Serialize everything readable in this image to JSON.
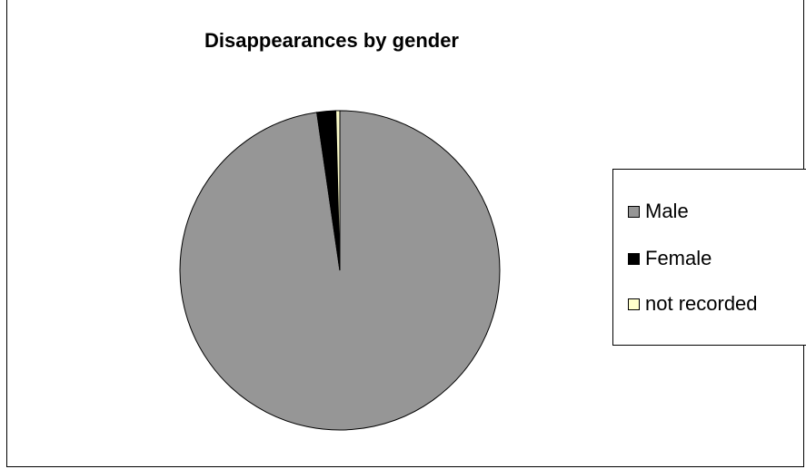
{
  "chart_data": {
    "type": "pie",
    "title": "Disappearances by gender",
    "categories": [
      "Male",
      "Female",
      "not recorded"
    ],
    "values": [
      97.7,
      1.9,
      0.4
    ],
    "colors": [
      "#969696",
      "#000000",
      "#ffffcc"
    ],
    "legend_position": "right"
  }
}
